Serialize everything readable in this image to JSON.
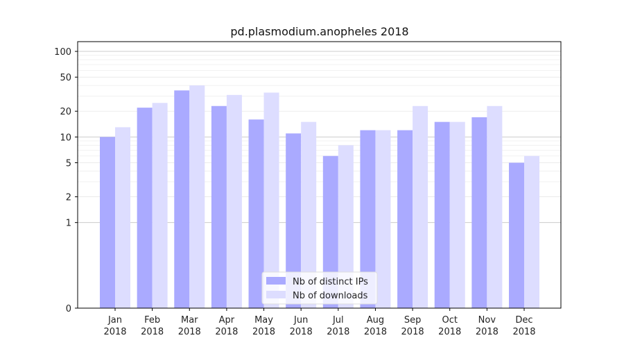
{
  "chart_data": {
    "type": "bar",
    "title": "pd.plasmodium.anopheles 2018",
    "xlabel": "",
    "ylabel": "",
    "y_scale": "symlog",
    "ylim": [
      0,
      130
    ],
    "y_ticks": [
      0,
      1,
      2,
      5,
      10,
      20,
      50,
      100
    ],
    "y_tick_labels": [
      "0",
      "1",
      "2",
      "5",
      "10",
      "20",
      "50",
      "100"
    ],
    "categories": [
      "Jan 2018",
      "Feb 2018",
      "Mar 2018",
      "Apr 2018",
      "May 2018",
      "Jun 2018",
      "Jul 2018",
      "Aug 2018",
      "Sep 2018",
      "Oct 2018",
      "Nov 2018",
      "Dec 2018"
    ],
    "category_lines": [
      [
        "Jan",
        "2018"
      ],
      [
        "Feb",
        "2018"
      ],
      [
        "Mar",
        "2018"
      ],
      [
        "Apr",
        "2018"
      ],
      [
        "May",
        "2018"
      ],
      [
        "Jun",
        "2018"
      ],
      [
        "Jul",
        "2018"
      ],
      [
        "Aug",
        "2018"
      ],
      [
        "Sep",
        "2018"
      ],
      [
        "Oct",
        "2018"
      ],
      [
        "Nov",
        "2018"
      ],
      [
        "Dec",
        "2018"
      ]
    ],
    "series": [
      {
        "name": "Nb of distinct IPs",
        "color": "#aaaaff",
        "values": [
          10,
          22,
          35,
          23,
          16,
          11,
          6,
          12,
          12,
          15,
          17,
          5
        ]
      },
      {
        "name": "Nb of downloads",
        "color": "#ddddff",
        "values": [
          13,
          25,
          40,
          31,
          33,
          15,
          8,
          12,
          23,
          15,
          23,
          6
        ]
      }
    ],
    "legend_position": "bottom-center",
    "grid": true
  }
}
